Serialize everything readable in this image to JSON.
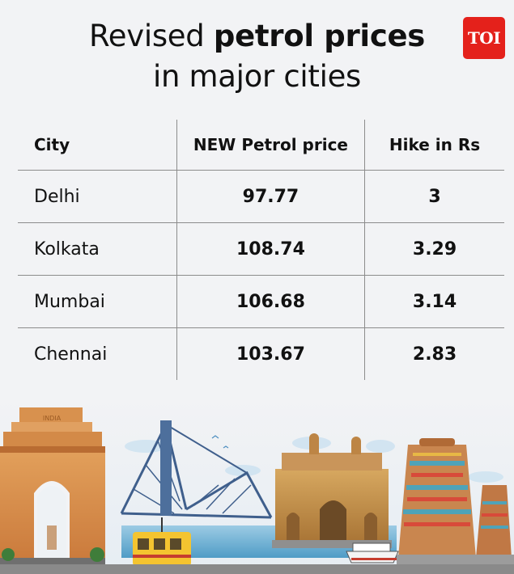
{
  "title": {
    "line1_plain": "Revised ",
    "line1_bold": "petrol prices",
    "line2": "in major cities"
  },
  "logo": "TOI",
  "table": {
    "headers": [
      "City",
      "NEW Petrol price",
      "Hike in Rs"
    ],
    "rows": [
      [
        "Delhi",
        "97.77",
        "3"
      ],
      [
        "Kolkata",
        "108.74",
        "3.29"
      ],
      [
        "Mumbai",
        "106.68",
        "3.14"
      ],
      [
        "Chennai",
        "103.67",
        "2.83"
      ]
    ]
  },
  "illustration": {
    "items": [
      "india-gate",
      "howrah-bridge",
      "tram",
      "gateway-of-india",
      "ferry",
      "temple-gopuram"
    ],
    "logo_text": "INDIA"
  },
  "colors": {
    "logo_bg": "#e4211b",
    "background": "#f2f3f5",
    "rule": "#8c8c8c"
  }
}
